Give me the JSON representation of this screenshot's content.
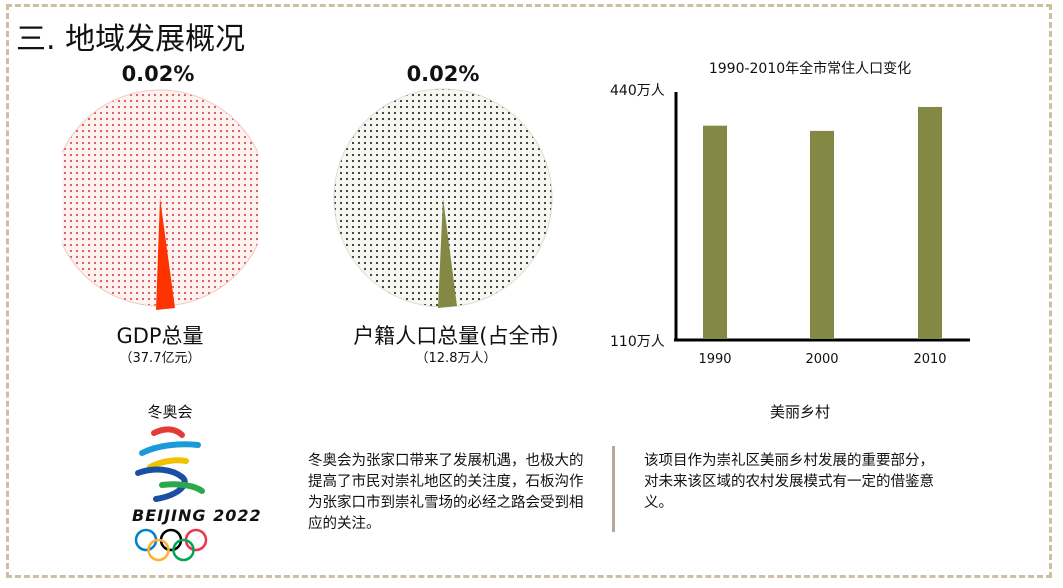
{
  "section_title": "三. 地域发展概况",
  "colors": {
    "frame": "#cdbfa4",
    "red_dots": "#d9534f",
    "red_slice": "#ff3300",
    "olive": "#838944",
    "dark_dots": "#333333",
    "separator": "#b9a89a"
  },
  "chart_data": [
    {
      "type": "pie",
      "percentage_label": "0.02%",
      "caption": "GDP总量",
      "subcaption": "（37.7亿元）",
      "slices": [
        {
          "name": "highlight",
          "value": 0.02,
          "color": "#ff3300"
        },
        {
          "name": "rest",
          "value": 99.98,
          "color": "#d9534f"
        }
      ]
    },
    {
      "type": "pie",
      "percentage_label": "0.02%",
      "caption": "户籍人口总量(占全市)",
      "subcaption": "（12.8万人）",
      "slices": [
        {
          "name": "highlight",
          "value": 0.02,
          "color": "#838944"
        },
        {
          "name": "rest",
          "value": 99.98,
          "color": "#333333"
        }
      ]
    },
    {
      "type": "bar",
      "title": "1990-2010年全市常住人口变化",
      "categories": [
        "1990",
        "2000",
        "2010"
      ],
      "values": [
        395,
        388,
        420
      ],
      "ylim": [
        110,
        440
      ],
      "ytick_labels": [
        "440万人",
        "110万人"
      ],
      "bar_color": "#838944"
    }
  ],
  "olympics": {
    "label": "冬奥会",
    "logo_text": "BEIJING 2022",
    "description": "冬奥会为张家口带来了发展机遇，也极大的提高了市民对崇礼地区的关注度，石板沟作为张家口市到崇礼雪场的必经之路会受到相应的关注。"
  },
  "village": {
    "label": "美丽乡村",
    "description": "该项目作为崇礼区美丽乡村发展的重要部分，对未来该区域的农村发展模式有一定的借鉴意义。"
  }
}
